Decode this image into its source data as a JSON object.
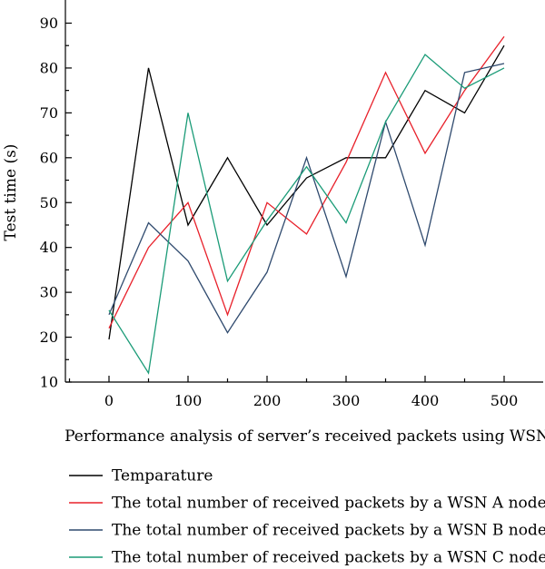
{
  "chart_data": {
    "type": "line",
    "title": "",
    "xlabel": "Performance analysis of server’s received packets using WSN",
    "ylabel": "Test time (s)",
    "xlim": [
      -40,
      520
    ],
    "ylim": [
      10,
      95
    ],
    "xticks": [
      0,
      100,
      200,
      300,
      400,
      500
    ],
    "yticks": [
      10,
      20,
      30,
      40,
      50,
      60,
      70,
      80,
      90
    ],
    "x": [
      0,
      50,
      100,
      150,
      200,
      250,
      300,
      350,
      400,
      450,
      500
    ],
    "grid": false,
    "legend_position": "bottom",
    "series": [
      {
        "name": "Temparature",
        "color": "#000000",
        "values": [
          19.5,
          80,
          45,
          60,
          45,
          55.5,
          60,
          60,
          75,
          70,
          85
        ]
      },
      {
        "name": "The total number of received packets by a WSN A node.",
        "color": "#e8202a",
        "values": [
          22,
          40,
          50,
          25,
          50,
          43,
          59,
          79,
          61,
          75,
          87
        ]
      },
      {
        "name": "The total number of received packets by a WSN B node.",
        "color": "#2f4a6e",
        "values": [
          25,
          45.5,
          37,
          21,
          34.5,
          60,
          33.5,
          68,
          40.5,
          79,
          81
        ]
      },
      {
        "name": "The total number of received packets by a WSN C node.",
        "color": "#1a9b77",
        "values": [
          26,
          12,
          70,
          32.5,
          46,
          58,
          45.5,
          68,
          83,
          75.5,
          80
        ]
      }
    ]
  }
}
